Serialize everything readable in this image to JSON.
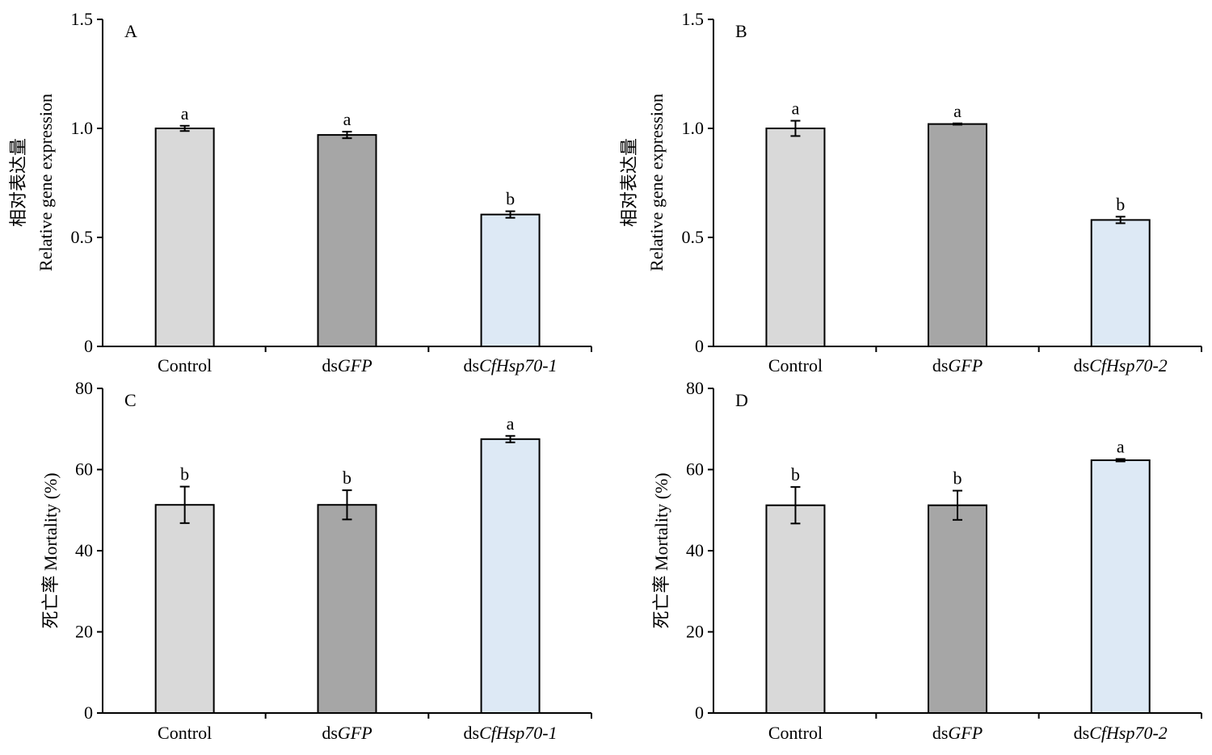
{
  "chart_data": [
    {
      "type": "bar",
      "panel": "A",
      "categories": [
        "Control",
        "dsGFP",
        "dsCfHsp70-1"
      ],
      "category_parts": [
        {
          "plain": "Control",
          "italic": ""
        },
        {
          "plain": "ds",
          "italic": "GFP"
        },
        {
          "plain": "ds",
          "italic": "CfHsp70-1"
        }
      ],
      "values": [
        1.0,
        0.97,
        0.605
      ],
      "errors": [
        0.012,
        0.015,
        0.015
      ],
      "significance": [
        "a",
        "a",
        "b"
      ],
      "ylabel_cn": "相对表达量",
      "ylabel_en": "Relative gene expression",
      "ylim": [
        0,
        1.5
      ],
      "yticks": [
        0,
        0.5,
        1.0,
        1.5
      ],
      "ytick_labels": [
        "0",
        "0.5",
        "1.0",
        "1.5"
      ]
    },
    {
      "type": "bar",
      "panel": "B",
      "categories": [
        "Control",
        "dsGFP",
        "dsCfHsp70-2"
      ],
      "category_parts": [
        {
          "plain": "Control",
          "italic": ""
        },
        {
          "plain": "ds",
          "italic": "GFP"
        },
        {
          "plain": "ds",
          "italic": "CfHsp70-2"
        }
      ],
      "values": [
        1.0,
        1.02,
        0.58
      ],
      "errors": [
        0.035,
        0.003,
        0.015
      ],
      "significance": [
        "a",
        "a",
        "b"
      ],
      "ylabel_cn": "相对表达量",
      "ylabel_en": "Relative gene expression",
      "ylim": [
        0,
        1.5
      ],
      "yticks": [
        0,
        0.5,
        1.0,
        1.5
      ],
      "ytick_labels": [
        "0",
        "0.5",
        "1.0",
        "1.5"
      ]
    },
    {
      "type": "bar",
      "panel": "C",
      "categories": [
        "Control",
        "dsGFP",
        "dsCfHsp70-1"
      ],
      "category_parts": [
        {
          "plain": "Control",
          "italic": ""
        },
        {
          "plain": "ds",
          "italic": "GFP"
        },
        {
          "plain": "ds",
          "italic": "CfHsp70-1"
        }
      ],
      "values": [
        51.3,
        51.3,
        67.5
      ],
      "errors": [
        4.5,
        3.6,
        0.8
      ],
      "significance": [
        "b",
        "b",
        "a"
      ],
      "ylabel_cn": "死亡率",
      "ylabel_en": "Mortality (%)",
      "ylim": [
        0,
        80
      ],
      "yticks": [
        0,
        20,
        40,
        60,
        80
      ],
      "ytick_labels": [
        "0",
        "20",
        "40",
        "60",
        "80"
      ]
    },
    {
      "type": "bar",
      "panel": "D",
      "categories": [
        "Control",
        "dsGFP",
        "dsCfHsp70-2"
      ],
      "category_parts": [
        {
          "plain": "Control",
          "italic": ""
        },
        {
          "plain": "ds",
          "italic": "GFP"
        },
        {
          "plain": "ds",
          "italic": "CfHsp70-2"
        }
      ],
      "values": [
        51.2,
        51.2,
        62.3
      ],
      "errors": [
        4.5,
        3.6,
        0.3
      ],
      "significance": [
        "b",
        "b",
        "a"
      ],
      "ylabel_cn": "死亡率",
      "ylabel_en": "Mortality (%)",
      "ylim": [
        0,
        80
      ],
      "yticks": [
        0,
        20,
        40,
        60,
        80
      ],
      "ytick_labels": [
        "0",
        "20",
        "40",
        "60",
        "80"
      ]
    }
  ],
  "bar_colors": [
    "#d9d9d9",
    "#a6a6a6",
    "#dde9f5"
  ],
  "bar_edge_color": "#000000"
}
